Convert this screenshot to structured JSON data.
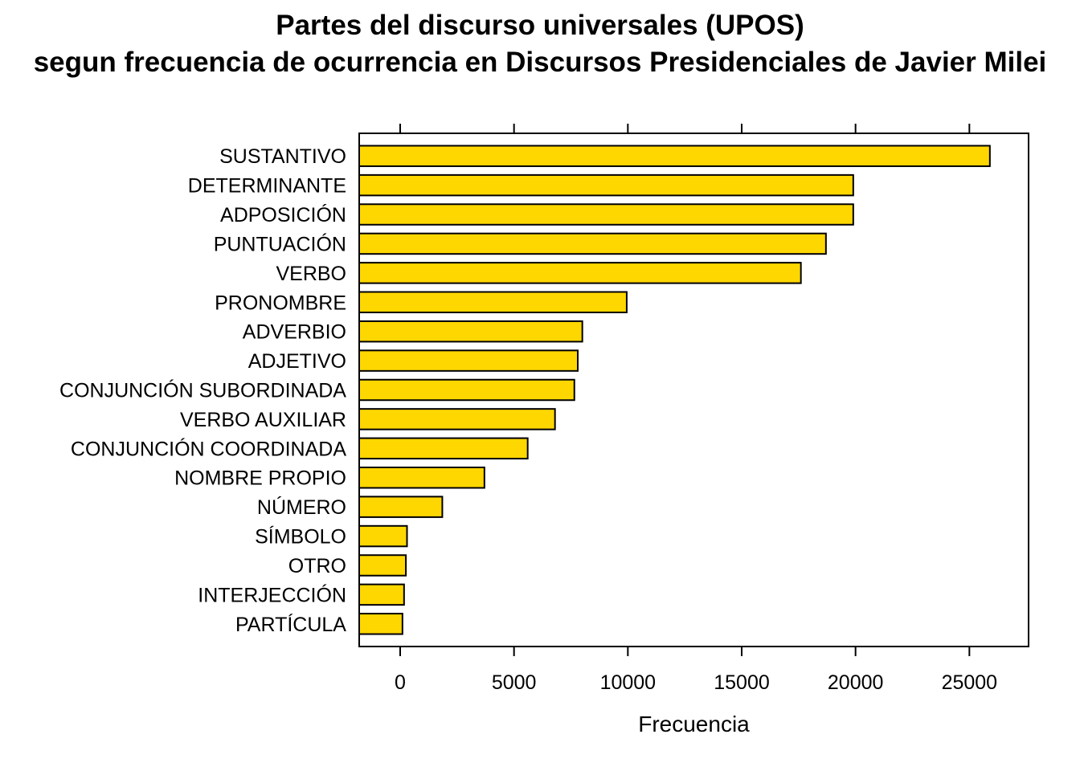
{
  "chart_data": {
    "type": "bar",
    "orientation": "horizontal",
    "title": "Partes del discurso universales (UPOS)",
    "subtitle": "segun frecuencia de ocurrencia en Discursos Presidenciales de Javier Milei",
    "xlabel": "Frecuencia",
    "ylabel": "",
    "xlim": [
      -1800,
      27600
    ],
    "xticks": [
      0,
      5000,
      10000,
      15000,
      20000,
      25000
    ],
    "categories": [
      "SUSTANTIVO",
      "DETERMINANTE",
      "ADPOSICIÓN",
      "PUNTUACIÓN",
      "VERBO",
      "PRONOMBRE",
      "ADVERBIO",
      "ADJETIVO",
      "CONJUNCIÓN SUBORDINADA",
      "VERBO AUXILIAR",
      "CONJUNCIÓN COORDINADA",
      "NOMBRE PROPIO",
      "NÚMERO",
      "SÍMBOLO",
      "OTRO",
      "INTERJECCIÓN",
      "PARTÍCULA"
    ],
    "values": [
      25900,
      19900,
      19900,
      18700,
      17600,
      9950,
      8000,
      7800,
      7650,
      6800,
      5600,
      3700,
      1850,
      300,
      250,
      170,
      100
    ],
    "bar_color": "#FFD700",
    "bar_stroke": "#000000",
    "grid": false,
    "legend": "none"
  }
}
